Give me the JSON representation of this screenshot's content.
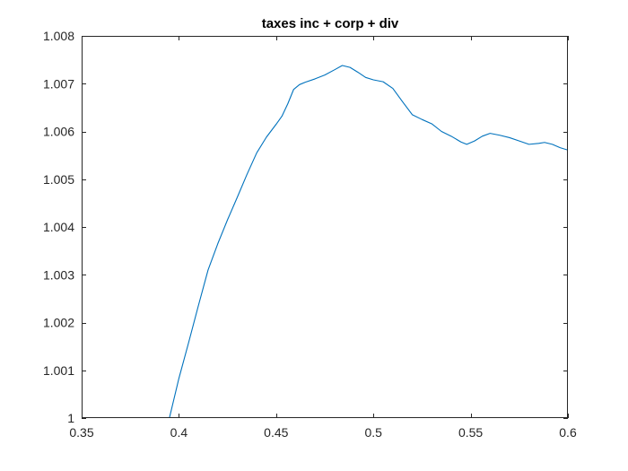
{
  "figure": {
    "background": "#ffffff",
    "axes_color": "#262626"
  },
  "chart_data": {
    "type": "line",
    "title": "taxes inc + corp + div",
    "xlabel": "",
    "ylabel": "",
    "xlim": [
      0.35,
      0.6
    ],
    "ylim": [
      1.0,
      1.008
    ],
    "xticks": [
      0.35,
      0.4,
      0.45,
      0.5,
      0.55,
      0.6
    ],
    "xtick_labels": [
      "0.35",
      "0.4",
      "0.45",
      "0.5",
      "0.55",
      "0.6"
    ],
    "yticks": [
      1.0,
      1.001,
      1.002,
      1.003,
      1.004,
      1.005,
      1.006,
      1.007,
      1.008
    ],
    "ytick_labels": [
      "1",
      "1.001",
      "1.002",
      "1.003",
      "1.004",
      "1.005",
      "1.006",
      "1.007",
      "1.008"
    ],
    "grid": false,
    "series": [
      {
        "color": "#0072bd",
        "x": [
          0.395,
          0.4,
          0.405,
          0.41,
          0.415,
          0.42,
          0.425,
          0.43,
          0.435,
          0.44,
          0.445,
          0.45,
          0.453,
          0.456,
          0.459,
          0.462,
          0.465,
          0.47,
          0.475,
          0.48,
          0.484,
          0.488,
          0.492,
          0.496,
          0.5,
          0.505,
          0.51,
          0.515,
          0.52,
          0.525,
          0.53,
          0.535,
          0.54,
          0.545,
          0.548,
          0.552,
          0.556,
          0.56,
          0.565,
          0.57,
          0.575,
          0.58,
          0.585,
          0.588,
          0.592,
          0.596,
          0.6
        ],
        "y": [
          0.99998,
          1.00083,
          1.00158,
          1.00235,
          1.0031,
          1.00365,
          1.00415,
          1.00462,
          1.0051,
          1.00555,
          1.00588,
          1.00615,
          1.00632,
          1.00658,
          1.00688,
          1.00698,
          1.00703,
          1.0071,
          1.00718,
          1.00729,
          1.00738,
          1.00734,
          1.00724,
          1.00713,
          1.00708,
          1.00704,
          1.0069,
          1.00662,
          1.00635,
          1.00625,
          1.00616,
          1.006,
          1.0059,
          1.00578,
          1.00573,
          1.0058,
          1.0059,
          1.00596,
          1.00592,
          1.00587,
          1.0058,
          1.00573,
          1.00575,
          1.00577,
          1.00573,
          1.00566,
          1.00561
        ]
      }
    ]
  }
}
